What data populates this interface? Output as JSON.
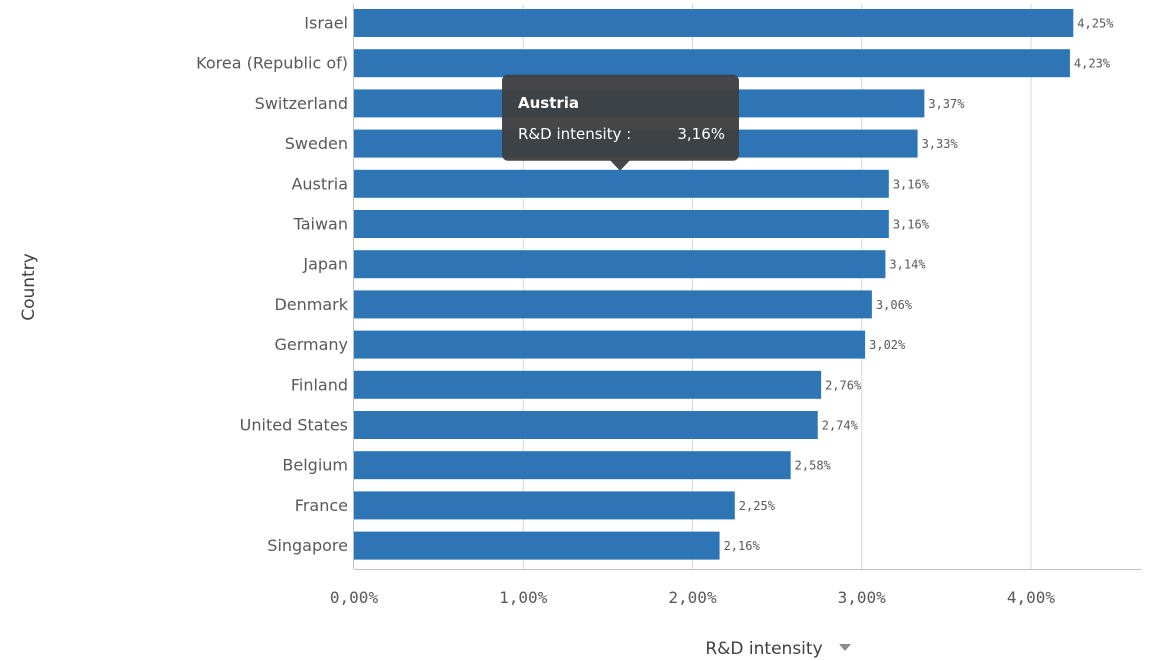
{
  "chart_data": {
    "type": "bar",
    "orientation": "horizontal",
    "categories": [
      "Israel",
      "Korea (Republic of)",
      "Switzerland",
      "Sweden",
      "Austria",
      "Taiwan",
      "Japan",
      "Denmark",
      "Germany",
      "Finland",
      "United States",
      "Belgium",
      "France",
      "Singapore"
    ],
    "values": [
      4.25,
      4.23,
      3.37,
      3.33,
      3.16,
      3.16,
      3.14,
      3.06,
      3.02,
      2.76,
      2.74,
      2.58,
      2.25,
      2.16
    ],
    "value_labels": [
      "4,25%",
      "4,23%",
      "3,37%",
      "3,33%",
      "3,16%",
      "3,16%",
      "3,14%",
      "3,06%",
      "3,02%",
      "2,76%",
      "2,74%",
      "2,58%",
      "2,25%",
      "2,16%"
    ],
    "xlabel": "R&D intensity",
    "ylabel": "Country",
    "xlim": [
      0,
      4.65
    ],
    "x_ticks": [
      0,
      1,
      2,
      3,
      4
    ],
    "x_tick_labels": [
      "0,00%",
      "1,00%",
      "2,00%",
      "3,00%",
      "4,00%"
    ],
    "grid": "vertical",
    "legend": "none",
    "bar_color": "#2e75b6",
    "tooltip": {
      "title": "Austria",
      "label": "R&D intensity :",
      "value": "3,16%",
      "target_category": "Austria"
    }
  }
}
